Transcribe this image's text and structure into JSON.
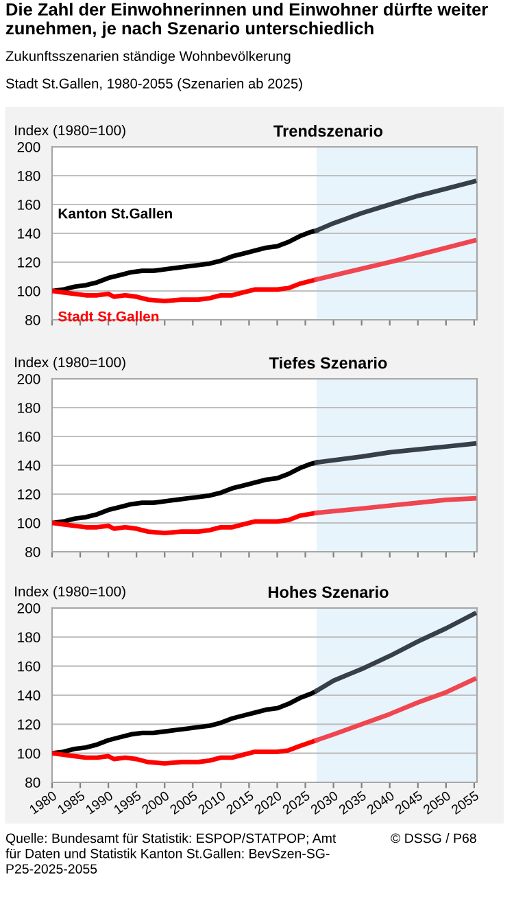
{
  "chart_data": [
    {
      "type": "line",
      "title": "Trendszenario",
      "ylabel": "Index (1980=100)",
      "annotations": [
        "Die Zahl der Einwohnerinnen und Einwohner dürfte weiter zunehmen, je nach Szenario unterschiedlich",
        "Zukunftsszenarien ständige Wohnbevölkerung",
        "Stadt St.Gallen, 1980-2055 (Szenarien ab 2025)",
        "Quelle: Bundesamt für Statistik: ESPOP/STATPOP; Amt\nfür Daten und Statistik Kanton St.Gallen: BevSzen-SG-\nP25-2025-2055",
        "© DSSG / P68"
      ],
      "xlim": [
        1980,
        2055.5
      ],
      "xticks": [
        1980,
        1985,
        1990,
        1995,
        2000,
        2005,
        2010,
        2015,
        2020,
        2025,
        2030,
        2035,
        2040,
        2045,
        2050,
        2055
      ],
      "ylim": [
        80,
        200
      ],
      "yticks": [
        80,
        100,
        120,
        140,
        160,
        180,
        200
      ],
      "grid": "y",
      "legend": false,
      "tick_labels": "y",
      "bands": [
        {
          "axis": "x",
          "from": 2027,
          "to": 2055.5,
          "color": "#e8f4fc"
        }
      ],
      "series": [
        {
          "name": "Kanton St.Gallen",
          "color": "#000000",
          "x": [
            1980,
            1982,
            1984,
            1986,
            1988,
            1990,
            1992,
            1994,
            1996,
            1998,
            2000,
            2002,
            2004,
            2006,
            2008,
            2010,
            2012,
            2014,
            2016,
            2018,
            2020,
            2022,
            2024,
            2026,
            2027
          ],
          "values": [
            100,
            101,
            103,
            104,
            106,
            109,
            111,
            113,
            114,
            114,
            115,
            116,
            117,
            118,
            119,
            121,
            124,
            126,
            128,
            130,
            131,
            134,
            138,
            141,
            142
          ]
        },
        {
          "name": "Stadt St.Gallen",
          "color": "#ff0000",
          "x": [
            1980,
            1982,
            1984,
            1986,
            1988,
            1990,
            1991,
            1993,
            1995,
            1997,
            2000,
            2003,
            2006,
            2008,
            2010,
            2012,
            2014,
            2016,
            2018,
            2020,
            2022,
            2024,
            2027
          ],
          "values": [
            100,
            99,
            98,
            97,
            97,
            98,
            96,
            97,
            96,
            94,
            93,
            94,
            94,
            95,
            97,
            97,
            99,
            101,
            101,
            101,
            102,
            105,
            108
          ]
        },
        {
          "color": "#37404a",
          "x": [
            2027,
            2030,
            2035,
            2040,
            2045,
            2050,
            2055
          ],
          "values": [
            142,
            147,
            154,
            160,
            166,
            171,
            176
          ]
        },
        {
          "color": "#ef4650",
          "x": [
            2027,
            2041,
            2055
          ],
          "values": [
            108,
            121,
            135
          ]
        }
      ]
    },
    {
      "type": "line",
      "title": "Tiefes Szenario",
      "ylabel": "Index (1980=100)",
      "xlim": [
        1980,
        2055.5
      ],
      "xticks": [
        1980,
        1985,
        1990,
        1995,
        2000,
        2005,
        2010,
        2015,
        2020,
        2025,
        2030,
        2035,
        2040,
        2045,
        2050,
        2055
      ],
      "ylim": [
        80,
        200
      ],
      "yticks": [
        80,
        100,
        120,
        140,
        160,
        180,
        200
      ],
      "grid": "y",
      "legend": false,
      "tick_labels": "y",
      "bands": [
        {
          "axis": "x",
          "from": 2027,
          "to": 2055.5,
          "color": "#e8f4fc"
        }
      ],
      "series": [
        {
          "color": "#000000",
          "x": [
            1980,
            1982,
            1984,
            1986,
            1988,
            1990,
            1992,
            1994,
            1996,
            1998,
            2000,
            2002,
            2004,
            2006,
            2008,
            2010,
            2012,
            2014,
            2016,
            2018,
            2020,
            2022,
            2024,
            2026,
            2027
          ],
          "values": [
            100,
            101,
            103,
            104,
            106,
            109,
            111,
            113,
            114,
            114,
            115,
            116,
            117,
            118,
            119,
            121,
            124,
            126,
            128,
            130,
            131,
            134,
            138,
            141,
            142
          ]
        },
        {
          "color": "#ff0000",
          "x": [
            1980,
            1982,
            1984,
            1986,
            1988,
            1990,
            1991,
            1993,
            1995,
            1997,
            2000,
            2003,
            2006,
            2008,
            2010,
            2012,
            2014,
            2016,
            2018,
            2020,
            2022,
            2024,
            2027
          ],
          "values": [
            100,
            99,
            98,
            97,
            97,
            98,
            96,
            97,
            96,
            94,
            93,
            94,
            94,
            95,
            97,
            97,
            99,
            101,
            101,
            101,
            102,
            105,
            107
          ]
        },
        {
          "color": "#37404a",
          "x": [
            2027,
            2035,
            2040,
            2045,
            2050,
            2055
          ],
          "values": [
            142,
            146,
            149,
            151,
            153,
            155
          ]
        },
        {
          "color": "#ef4650",
          "x": [
            2027,
            2035,
            2040,
            2045,
            2050,
            2055
          ],
          "values": [
            107,
            110,
            112,
            114,
            116,
            117
          ]
        }
      ]
    },
    {
      "type": "line",
      "title": "Hohes Szenario",
      "ylabel": "Index (1980=100)",
      "xlim": [
        1980,
        2055.5
      ],
      "xticks": [
        1980,
        1985,
        1990,
        1995,
        2000,
        2005,
        2010,
        2015,
        2020,
        2025,
        2030,
        2035,
        2040,
        2045,
        2050,
        2055
      ],
      "ylim": [
        80,
        200
      ],
      "yticks": [
        80,
        100,
        120,
        140,
        160,
        180,
        200
      ],
      "grid": "y",
      "legend": false,
      "bands": [
        {
          "axis": "x",
          "from": 2027,
          "to": 2055.5,
          "color": "#e8f4fc"
        }
      ],
      "series": [
        {
          "color": "#000000",
          "x": [
            1980,
            1982,
            1984,
            1986,
            1988,
            1990,
            1992,
            1994,
            1996,
            1998,
            2000,
            2002,
            2004,
            2006,
            2008,
            2010,
            2012,
            2014,
            2016,
            2018,
            2020,
            2022,
            2024,
            2026,
            2027
          ],
          "values": [
            100,
            101,
            103,
            104,
            106,
            109,
            111,
            113,
            114,
            114,
            115,
            116,
            117,
            118,
            119,
            121,
            124,
            126,
            128,
            130,
            131,
            134,
            138,
            141,
            143
          ]
        },
        {
          "color": "#ff0000",
          "x": [
            1980,
            1982,
            1984,
            1986,
            1988,
            1990,
            1991,
            1993,
            1995,
            1997,
            2000,
            2003,
            2006,
            2008,
            2010,
            2012,
            2014,
            2016,
            2018,
            2020,
            2022,
            2024,
            2027
          ],
          "values": [
            100,
            99,
            98,
            97,
            97,
            98,
            96,
            97,
            96,
            94,
            93,
            94,
            94,
            95,
            97,
            97,
            99,
            101,
            101,
            101,
            102,
            105,
            109
          ]
        },
        {
          "color": "#37404a",
          "x": [
            2027,
            2030,
            2035,
            2040,
            2045,
            2050,
            2055
          ],
          "values": [
            143,
            150,
            158,
            167,
            177,
            186,
            196
          ]
        },
        {
          "color": "#ef4650",
          "x": [
            2027,
            2030,
            2035,
            2040,
            2045,
            2050,
            2055
          ],
          "values": [
            109,
            113,
            120,
            127,
            135,
            142,
            151
          ]
        }
      ]
    }
  ]
}
